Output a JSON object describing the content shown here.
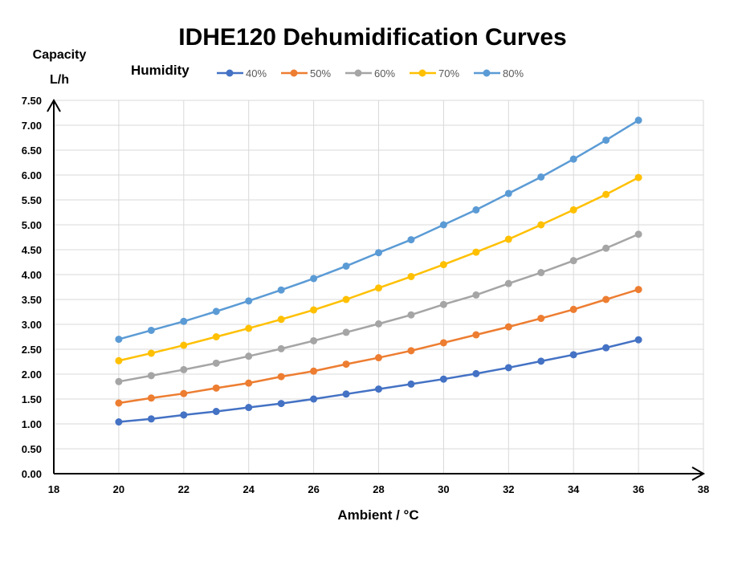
{
  "chart_data": {
    "type": "line",
    "title": "IDHE120 Dehumidification Curves",
    "ylabel_lines": [
      "Capacity",
      "L/h"
    ],
    "xlabel": "Ambient / °C",
    "legend_title": "Humidity",
    "legend_position": "top",
    "grid": true,
    "xlim": [
      18,
      38
    ],
    "ylim": [
      0,
      7.5
    ],
    "x_ticks": [
      "18",
      "20",
      "22",
      "24",
      "26",
      "28",
      "30",
      "32",
      "34",
      "36",
      "38"
    ],
    "x_tick_values": [
      18,
      20,
      22,
      24,
      26,
      28,
      30,
      32,
      34,
      36,
      38
    ],
    "y_ticks": [
      "0.00",
      "0.50",
      "1.00",
      "1.50",
      "2.00",
      "2.50",
      "3.00",
      "3.50",
      "4.00",
      "4.50",
      "5.00",
      "5.50",
      "6.00",
      "6.50",
      "7.00",
      "7.50"
    ],
    "y_tick_values": [
      0,
      0.5,
      1,
      1.5,
      2,
      2.5,
      3,
      3.5,
      4,
      4.5,
      5,
      5.5,
      6,
      6.5,
      7,
      7.5
    ],
    "x": [
      20,
      21,
      22,
      23,
      24,
      25,
      26,
      27,
      28,
      29,
      30,
      31,
      32,
      33,
      34,
      35,
      36
    ],
    "series": [
      {
        "name": "40%",
        "color": "#4472c4",
        "values": [
          1.04,
          1.1,
          1.18,
          1.25,
          1.33,
          1.41,
          1.5,
          1.6,
          1.7,
          1.8,
          1.9,
          2.01,
          2.13,
          2.26,
          2.39,
          2.53,
          2.69
        ]
      },
      {
        "name": "50%",
        "color": "#ed7d31",
        "values": [
          1.42,
          1.52,
          1.61,
          1.72,
          1.82,
          1.95,
          2.06,
          2.2,
          2.33,
          2.47,
          2.63,
          2.79,
          2.95,
          3.12,
          3.3,
          3.5,
          3.7
        ]
      },
      {
        "name": "60%",
        "color": "#a5a5a5",
        "values": [
          1.85,
          1.97,
          2.09,
          2.22,
          2.36,
          2.51,
          2.67,
          2.84,
          3.01,
          3.19,
          3.4,
          3.59,
          3.82,
          4.04,
          4.28,
          4.53,
          4.81
        ]
      },
      {
        "name": "70%",
        "color": "#ffc000",
        "values": [
          2.27,
          2.42,
          2.58,
          2.75,
          2.92,
          3.1,
          3.29,
          3.5,
          3.73,
          3.96,
          4.2,
          4.45,
          4.71,
          5.0,
          5.3,
          5.61,
          5.95
        ]
      },
      {
        "name": "80%",
        "color": "#5b9bd5",
        "values": [
          2.7,
          2.88,
          3.06,
          3.26,
          3.47,
          3.69,
          3.92,
          4.17,
          4.44,
          4.7,
          5.0,
          5.3,
          5.63,
          5.96,
          6.32,
          6.7,
          7.1
        ]
      }
    ]
  }
}
